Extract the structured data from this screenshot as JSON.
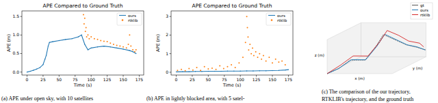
{
  "chart_data": [
    {
      "type": "line",
      "title": "APE Compared to Ground Truth",
      "x_label": "Time (s)",
      "y_label": "APE (m)",
      "xlim": [
        -8,
        182
      ],
      "xticks": [
        0,
        25,
        50,
        75,
        100,
        125,
        150,
        175
      ],
      "ylim": [
        -0.08,
        1.65
      ],
      "yticks": [
        {
          "value": 0,
          "label": "0.0"
        },
        0.5,
        {
          "value": 1,
          "label": "1.0"
        },
        1.5
      ],
      "legend": "upper right",
      "series": [
        {
          "name": "ours",
          "color": "#1f77b4",
          "type": "line",
          "marker": "dot",
          "x": [
            0,
            5,
            10,
            15,
            20,
            25,
            28,
            30,
            33,
            35,
            40,
            50,
            60,
            70,
            80,
            85,
            90,
            95,
            100,
            110,
            120,
            130,
            140,
            150,
            160,
            165,
            170
          ],
          "values": [
            0,
            0.02,
            0.05,
            0.08,
            0.12,
            0.2,
            0.35,
            0.45,
            0.7,
            0.8,
            0.82,
            0.85,
            0.88,
            0.9,
            0.95,
            1.0,
            0.75,
            0.6,
            0.65,
            0.68,
            0.7,
            0.68,
            0.65,
            0.62,
            0.58,
            0.55,
            0.5
          ]
        },
        {
          "name": "rtklib",
          "color": "#ff7f0e",
          "type": "scatter",
          "marker": "dot",
          "x": [
            88,
            89,
            90,
            91,
            92,
            93,
            95,
            97,
            100,
            105,
            110,
            115,
            120,
            125,
            130,
            135,
            140,
            145,
            150,
            155,
            158,
            160,
            162,
            165,
            168,
            170
          ],
          "values": [
            1.55,
            1.3,
            1.45,
            1.1,
            1.2,
            0.95,
            1.0,
            0.9,
            0.95,
            0.9,
            0.88,
            0.85,
            0.83,
            0.82,
            0.78,
            0.75,
            0.72,
            0.7,
            0.68,
            0.65,
            0.75,
            1.0,
            0.7,
            0.6,
            0.55,
            0.6
          ]
        }
      ]
    },
    {
      "type": "line",
      "title": "APE Compared to Ground Truth",
      "x_label": "Time (s)",
      "y_label": "APE (m)",
      "xlim": [
        -8,
        182
      ],
      "xticks": [
        0,
        25,
        50,
        75,
        100,
        125,
        150,
        175
      ],
      "ylim": [
        -0.15,
        3.3
      ],
      "yticks": [
        0,
        1,
        2,
        3
      ],
      "legend": "upper right",
      "series": [
        {
          "name": "ours",
          "color": "#1f77b4",
          "type": "line",
          "marker": "dot",
          "x": [
            0,
            10,
            20,
            30,
            40,
            50,
            60,
            70,
            80,
            90,
            100,
            110,
            120,
            130,
            140,
            150,
            160,
            170,
            175
          ],
          "values": [
            0.02,
            0.03,
            0.03,
            0.04,
            0.04,
            0.05,
            0.05,
            0.05,
            0.06,
            0.06,
            0.06,
            0.07,
            0.07,
            0.08,
            0.08,
            0.09,
            0.1,
            0.12,
            0.14
          ]
        },
        {
          "name": "rtklib",
          "color": "#ff7f0e",
          "type": "scatter",
          "marker": "dot",
          "x": [
            2,
            8,
            14,
            20,
            26,
            32,
            38,
            44,
            50,
            56,
            62,
            68,
            74,
            80,
            86,
            92,
            98,
            104,
            108,
            110,
            111,
            112,
            113,
            115,
            117,
            119,
            121,
            124,
            127,
            130,
            133,
            136,
            140,
            145,
            150,
            155,
            160,
            165,
            170
          ],
          "values": [
            0.1,
            0.15,
            0.08,
            0.2,
            0.12,
            0.25,
            0.1,
            0.3,
            0.18,
            0.22,
            0.15,
            0.35,
            0.2,
            0.3,
            0.4,
            0.25,
            0.5,
            0.8,
            1.6,
            3.0,
            2.4,
            1.9,
            1.2,
            1.5,
            1.0,
            1.3,
            0.9,
            1.1,
            0.8,
            1.0,
            0.7,
            0.9,
            0.6,
            0.8,
            0.5,
            0.7,
            0.55,
            0.6,
            0.4
          ]
        }
      ]
    },
    {
      "type": "line3d",
      "x_label": "x (m)",
      "y_label": "y (m)",
      "z_label": "z (m)",
      "xlim": [
        0,
        80
      ],
      "ylim": [
        0,
        50
      ],
      "zlim": [
        0,
        10
      ],
      "tick_labels": false,
      "legend": "upper right",
      "series": [
        {
          "name": "gt",
          "color": "#555555",
          "x": [
            0,
            10,
            20,
            30,
            35,
            40,
            50,
            60,
            70,
            80
          ],
          "y": [
            0,
            5,
            10,
            20,
            30,
            35,
            40,
            45,
            48,
            50
          ],
          "z": [
            0,
            1,
            3,
            2,
            5,
            8,
            6,
            4,
            3,
            2
          ]
        },
        {
          "name": "ours",
          "color": "#1f77b4",
          "x": [
            0,
            10,
            21,
            30,
            36,
            41,
            50,
            61,
            70,
            79
          ],
          "y": [
            0,
            5,
            11,
            21,
            30,
            36,
            41,
            45,
            49,
            50
          ],
          "z": [
            0,
            1,
            3,
            2,
            5,
            8,
            6,
            4,
            3,
            2
          ]
        },
        {
          "name": "rtklib",
          "color": "#d62728",
          "x": [
            0,
            12,
            22,
            32,
            37,
            43,
            52,
            62,
            72,
            78
          ],
          "y": [
            0,
            6,
            12,
            22,
            33,
            37,
            43,
            46,
            50,
            49
          ],
          "z": [
            0,
            2,
            4,
            3,
            6,
            9,
            7,
            5,
            4,
            3
          ]
        }
      ]
    }
  ],
  "captions": [
    "(a) APE under open sky, with 10 satellites",
    "(b) APE in lightly blocked area, with 5 satel-",
    "(c) The comparison of the our trajectory,",
    "RTKLIB's trajectory, and the ground truth"
  ]
}
